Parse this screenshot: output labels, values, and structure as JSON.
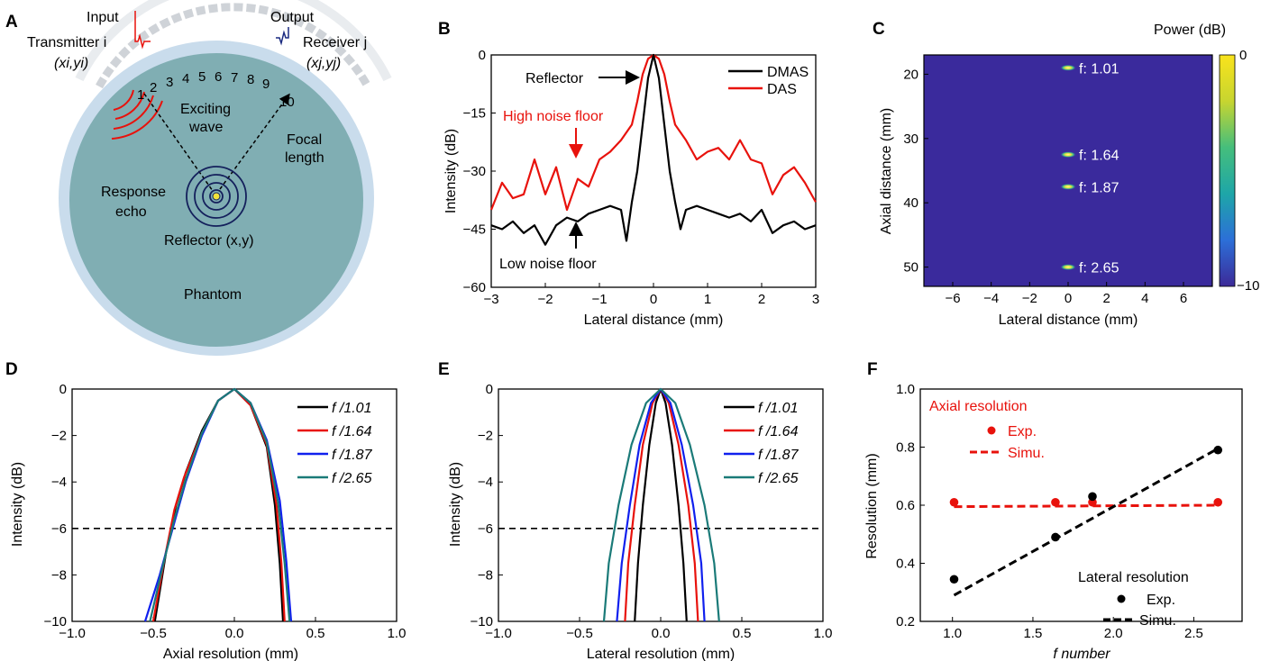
{
  "colors": {
    "red": "#e8120c",
    "black": "#000000",
    "blue": "#1020ee",
    "teal": "#1a7a78",
    "phantom": "#80aeb3",
    "phantom_ring": "#c9dcec",
    "heatmap_bg": "#3a2a9c"
  },
  "panels": {
    "A": {
      "label": "A",
      "input": "Input",
      "output": "Output",
      "transmitter": "Transmitter i",
      "receiver": "Receiver j",
      "tx_coord": "(xi,yi)",
      "rx_coord": "(xj,yj)",
      "elements": [
        "1",
        "2",
        "3",
        "4",
        "5",
        "6",
        "7",
        "8",
        "9",
        "10"
      ],
      "exciting_wave": [
        "Exciting",
        "wave"
      ],
      "focal_length": [
        "Focal",
        "length"
      ],
      "response_echo": [
        "Response",
        "echo"
      ],
      "reflector": "Reflector (x,y)",
      "phantom": "Phantom"
    },
    "B": {
      "label": "B",
      "ylabel": "Intensity (dB)",
      "xlabel": "Lateral distance (mm)",
      "xticks": [
        "−3",
        "−2",
        "−1",
        "0",
        "1",
        "2",
        "3"
      ],
      "yticks": [
        "0",
        "−15",
        "−30",
        "−45",
        "−60"
      ],
      "annot_reflector": "Reflector",
      "annot_high": "High noise floor",
      "annot_low": "Low noise floor",
      "legend": [
        "DMAS",
        "DAS"
      ]
    },
    "C": {
      "label": "C",
      "ylabel": "Axial distance (mm)",
      "xlabel": "Lateral distance (mm)",
      "xticks": [
        "−6",
        "−4",
        "−2",
        "0",
        "2",
        "4",
        "6"
      ],
      "yticks": [
        "20",
        "30",
        "40",
        "50"
      ],
      "colorbar_title": "Power (dB)",
      "colorbar_ticks": [
        "0",
        "−10"
      ],
      "spots": [
        "f: 1.01",
        "f: 1.64",
        "f: 1.87",
        "f: 2.65"
      ]
    },
    "D": {
      "label": "D",
      "ylabel": "Intensity (dB)",
      "xlabel": "Axial resolution (mm)",
      "xticks": [
        "−1.0",
        "−0.5",
        "0.0",
        "0.5",
        "1.0"
      ],
      "yticks": [
        "0",
        "−2",
        "−4",
        "−6",
        "−8",
        "−10"
      ],
      "legend": [
        "f /1.01",
        "f /1.64",
        "f /1.87",
        "f /2.65"
      ]
    },
    "E": {
      "label": "E",
      "ylabel": "Intensity (dB)",
      "xlabel": "Lateral resolution (mm)",
      "xticks": [
        "−1.0",
        "−0.5",
        "0.0",
        "0.5",
        "1.0"
      ],
      "yticks": [
        "0",
        "−2",
        "−4",
        "−6",
        "−8",
        "−10"
      ],
      "legend": [
        "f /1.01",
        "f /1.64",
        "f /1.87",
        "f /2.65"
      ]
    },
    "F": {
      "label": "F",
      "ylabel": "Resolution (mm)",
      "xlabel": "f number",
      "xticks": [
        "1.0",
        "1.5",
        "2.0",
        "2.5"
      ],
      "yticks": [
        "0.2",
        "0.4",
        "0.6",
        "0.8",
        "1.0"
      ],
      "axial_title": "Axial resolution",
      "axial_exp": "Exp.",
      "axial_simu": "Simu.",
      "lateral_title": "Lateral resolution",
      "lateral_exp": "Exp.",
      "lateral_simu": "Simu."
    }
  },
  "chart_data": [
    {
      "panel": "B",
      "type": "line",
      "xlabel": "Lateral distance (mm)",
      "ylabel": "Intensity (dB)",
      "xlim": [
        -3,
        3
      ],
      "ylim": [
        -60,
        0
      ],
      "series": [
        {
          "name": "DMAS",
          "color": "#000000",
          "x": [
            -3,
            -2.8,
            -2.6,
            -2.4,
            -2.2,
            -2.0,
            -1.8,
            -1.6,
            -1.4,
            -1.2,
            -1.0,
            -0.8,
            -0.6,
            -0.5,
            -0.4,
            -0.3,
            -0.2,
            -0.1,
            0,
            0.1,
            0.2,
            0.3,
            0.4,
            0.5,
            0.6,
            0.8,
            1.0,
            1.2,
            1.4,
            1.6,
            1.8,
            2.0,
            2.2,
            2.4,
            2.6,
            2.8,
            3.0
          ],
          "y": [
            -44,
            -45,
            -43,
            -46,
            -44,
            -49,
            -44,
            -42,
            -43,
            -41,
            -40,
            -39,
            -40,
            -48,
            -38,
            -30,
            -18,
            -6,
            0,
            -6,
            -18,
            -30,
            -38,
            -45,
            -40,
            -39,
            -40,
            -41,
            -42,
            -41,
            -43,
            -40,
            -46,
            -44,
            -43,
            -45,
            -44
          ]
        },
        {
          "name": "DAS",
          "color": "#e8120c",
          "x": [
            -3,
            -2.8,
            -2.6,
            -2.4,
            -2.2,
            -2.0,
            -1.8,
            -1.6,
            -1.4,
            -1.2,
            -1.0,
            -0.8,
            -0.6,
            -0.4,
            -0.3,
            -0.2,
            -0.1,
            0,
            0.1,
            0.2,
            0.3,
            0.4,
            0.6,
            0.8,
            1.0,
            1.2,
            1.4,
            1.6,
            1.8,
            2.0,
            2.2,
            2.4,
            2.6,
            2.8,
            3.0
          ],
          "y": [
            -40,
            -33,
            -37,
            -36,
            -27,
            -36,
            -29,
            -40,
            -32,
            -34,
            -27,
            -25,
            -22,
            -18,
            -12,
            -5,
            -1,
            0,
            -1,
            -5,
            -12,
            -18,
            -22,
            -27,
            -25,
            -24,
            -27,
            -22,
            -27,
            -28,
            -36,
            -31,
            -29,
            -33,
            -38
          ]
        }
      ]
    },
    {
      "panel": "C",
      "type": "heatmap",
      "xlabel": "Lateral distance (mm)",
      "ylabel": "Axial distance (mm)",
      "xlim": [
        -7.5,
        7.5
      ],
      "ylim": [
        53,
        17
      ],
      "clim": [
        -10,
        0
      ],
      "points": [
        {
          "x": 0,
          "y": 19,
          "label": "f: 1.01"
        },
        {
          "x": 0,
          "y": 32.5,
          "label": "f: 1.64"
        },
        {
          "x": 0,
          "y": 37.5,
          "label": "f: 1.87"
        },
        {
          "x": 0,
          "y": 50,
          "label": "f: 2.65"
        }
      ]
    },
    {
      "panel": "D",
      "type": "line",
      "xlabel": "Axial resolution (mm)",
      "ylabel": "Intensity (dB)",
      "xlim": [
        -1,
        1
      ],
      "ylim": [
        -10,
        0
      ],
      "reference_line": -6,
      "series": [
        {
          "name": "f /1.01",
          "color": "#000000",
          "x": [
            -0.49,
            -0.42,
            -0.36,
            -0.3,
            -0.2,
            -0.1,
            0,
            0.1,
            0.2,
            0.25,
            0.28,
            0.3
          ],
          "y": [
            -10,
            -7,
            -5,
            -3.6,
            -1.8,
            -0.5,
            0,
            -0.7,
            -2.5,
            -5,
            -7.5,
            -10
          ]
        },
        {
          "name": "f /1.64",
          "color": "#e8120c",
          "x": [
            -0.5,
            -0.43,
            -0.37,
            -0.31,
            -0.2,
            -0.1,
            0,
            0.1,
            0.2,
            0.26,
            0.29,
            0.31
          ],
          "y": [
            -10,
            -7.3,
            -5.2,
            -3.8,
            -1.9,
            -0.5,
            0,
            -0.7,
            -2.4,
            -5,
            -7.5,
            -10
          ]
        },
        {
          "name": "f /1.87",
          "color": "#1020ee",
          "x": [
            -0.55,
            -0.46,
            -0.38,
            -0.3,
            -0.2,
            -0.1,
            0,
            0.1,
            0.2,
            0.28,
            0.32,
            0.35
          ],
          "y": [
            -10,
            -8,
            -6,
            -4,
            -2,
            -0.5,
            0,
            -0.6,
            -2.2,
            -4.8,
            -7.4,
            -10
          ]
        },
        {
          "name": "f /2.65",
          "color": "#1a7a78",
          "x": [
            -0.52,
            -0.44,
            -0.37,
            -0.3,
            -0.2,
            -0.1,
            0,
            0.1,
            0.2,
            0.27,
            0.31,
            0.34
          ],
          "y": [
            -10,
            -7.6,
            -5.6,
            -3.9,
            -1.9,
            -0.5,
            0,
            -0.6,
            -2.3,
            -4.9,
            -7.5,
            -10
          ]
        }
      ]
    },
    {
      "panel": "E",
      "type": "line",
      "xlabel": "Lateral resolution (mm)",
      "ylabel": "Intensity (dB)",
      "xlim": [
        -1,
        1
      ],
      "ylim": [
        -10,
        0
      ],
      "reference_line": -6,
      "series": [
        {
          "name": "f /1.01",
          "color": "#000000",
          "x": [
            -0.16,
            -0.14,
            -0.11,
            -0.07,
            -0.03,
            0,
            0.03,
            0.07,
            0.11,
            0.14,
            0.16
          ],
          "y": [
            -10,
            -7.5,
            -5,
            -2.4,
            -0.6,
            0,
            -0.6,
            -2.4,
            -5,
            -7.5,
            -10
          ]
        },
        {
          "name": "f /1.64",
          "color": "#e8120c",
          "x": [
            -0.22,
            -0.2,
            -0.16,
            -0.11,
            -0.05,
            0,
            0.05,
            0.11,
            0.17,
            0.21,
            0.23
          ],
          "y": [
            -10,
            -7.5,
            -5,
            -2.4,
            -0.6,
            0,
            -0.6,
            -2.4,
            -5,
            -7.5,
            -10
          ]
        },
        {
          "name": "f /1.87",
          "color": "#1020ee",
          "x": [
            -0.27,
            -0.24,
            -0.19,
            -0.13,
            -0.06,
            0,
            0.06,
            0.13,
            0.2,
            0.25,
            0.27
          ],
          "y": [
            -10,
            -7.5,
            -5,
            -2.4,
            -0.6,
            0,
            -0.6,
            -2.4,
            -5,
            -7.5,
            -10
          ]
        },
        {
          "name": "f /2.65",
          "color": "#1a7a78",
          "x": [
            -0.35,
            -0.32,
            -0.26,
            -0.18,
            -0.09,
            0,
            0.09,
            0.18,
            0.27,
            0.33,
            0.36
          ],
          "y": [
            -10,
            -7.5,
            -5,
            -2.4,
            -0.6,
            0,
            -0.6,
            -2.4,
            -5,
            -7.5,
            -10
          ]
        }
      ]
    },
    {
      "panel": "F",
      "type": "scatter",
      "xlabel": "f number",
      "ylabel": "Resolution (mm)",
      "xlim": [
        0.8,
        2.8
      ],
      "ylim": [
        0.2,
        1.0
      ],
      "series": [
        {
          "name": "Axial resolution Exp.",
          "color": "#e8120c",
          "x": [
            1.01,
            1.64,
            1.87,
            2.65
          ],
          "y": [
            0.61,
            0.61,
            0.61,
            0.61
          ]
        },
        {
          "name": "Axial resolution Simu.",
          "color": "#e8120c",
          "line": "dashed",
          "x": [
            1.01,
            2.65
          ],
          "y": [
            0.595,
            0.6
          ]
        },
        {
          "name": "Lateral resolution Exp.",
          "color": "#000000",
          "x": [
            1.01,
            1.64,
            1.87,
            2.65
          ],
          "y": [
            0.345,
            0.49,
            0.63,
            0.79
          ]
        },
        {
          "name": "Lateral resolution Simu.",
          "color": "#000000",
          "line": "dashed",
          "x": [
            1.01,
            2.65
          ],
          "y": [
            0.29,
            0.795
          ]
        }
      ]
    }
  ]
}
